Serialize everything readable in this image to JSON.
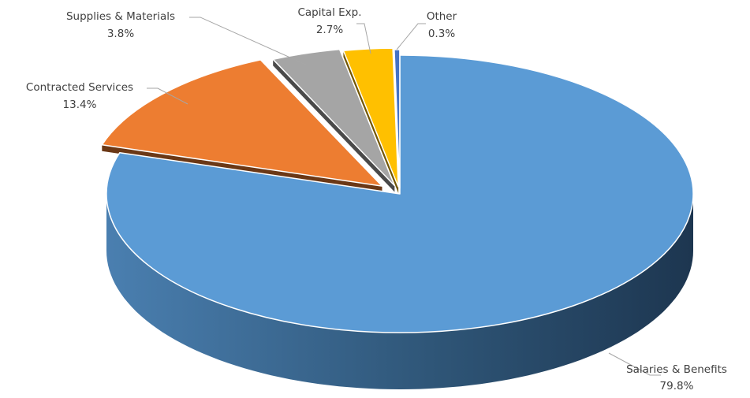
{
  "chart_data": {
    "type": "pie",
    "style": "3d-exploded",
    "title": "",
    "slices": [
      {
        "label": "Salaries & Benefits",
        "value": 79.8,
        "pct_label": "79.8%",
        "color": "#5b9bd5"
      },
      {
        "label": "Contracted Services",
        "value": 13.4,
        "pct_label": "13.4%",
        "color": "#ed7d31"
      },
      {
        "label": "Supplies & Materials",
        "value": 3.8,
        "pct_label": "3.8%",
        "color": "#a5a5a5"
      },
      {
        "label": "Capital Exp.",
        "value": 2.7,
        "pct_label": "2.7%",
        "color": "#ffc000"
      },
      {
        "label": "Other",
        "value": 0.3,
        "pct_label": "0.3%",
        "color": "#4472c4"
      }
    ]
  }
}
